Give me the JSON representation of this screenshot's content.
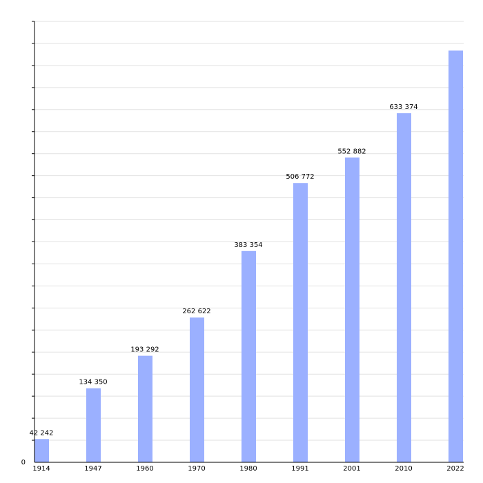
{
  "chart_data": {
    "type": "bar",
    "categories": [
      "1914",
      "1947",
      "1960",
      "1970",
      "1980",
      "1991",
      "2001",
      "2010",
      "2022"
    ],
    "values": [
      42242,
      134350,
      193292,
      262622,
      383354,
      506772,
      552882,
      633374,
      747000
    ],
    "value_labels": [
      "42 242",
      "134 350",
      "193 292",
      "262 622",
      "383 354",
      "506 772",
      "552 882",
      "633 374",
      null
    ],
    "color": "#9bb0ff",
    "ylim": [
      0,
      800000
    ],
    "yticks": [
      0
    ],
    "grid": true,
    "ygrid": [
      40000,
      80000,
      120000,
      160000,
      200000,
      240000,
      280000,
      320000,
      360000,
      400000,
      440000,
      480000,
      520000,
      560000,
      600000,
      640000,
      680000,
      720000,
      760000,
      800000
    ]
  }
}
